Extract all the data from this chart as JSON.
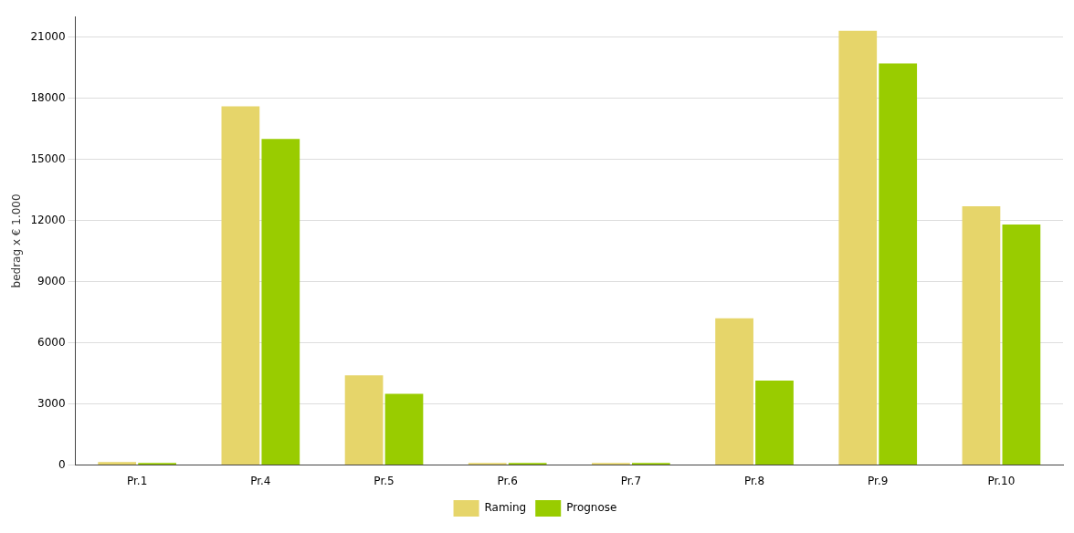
{
  "chart_data": {
    "type": "bar",
    "ylabel": "bedrag x € 1.000",
    "categories": [
      "Pr.1",
      "Pr.4",
      "Pr.5",
      "Pr.6",
      "Pr.7",
      "Pr.8",
      "Pr.9",
      "Pr.10"
    ],
    "series": [
      {
        "name": "Raming",
        "color": "#e6d56a",
        "values": [
          150,
          17600,
          4400,
          100,
          100,
          7200,
          21300,
          12700
        ]
      },
      {
        "name": "Prognose",
        "color": "#99cc00",
        "values": [
          100,
          16000,
          3500,
          100,
          100,
          4150,
          19700,
          11800
        ]
      }
    ],
    "ylim": [
      0,
      22000
    ],
    "yticks": [
      0,
      3000,
      6000,
      9000,
      12000,
      15000,
      18000,
      21000
    ],
    "grid": "y",
    "legend": "bottom"
  }
}
